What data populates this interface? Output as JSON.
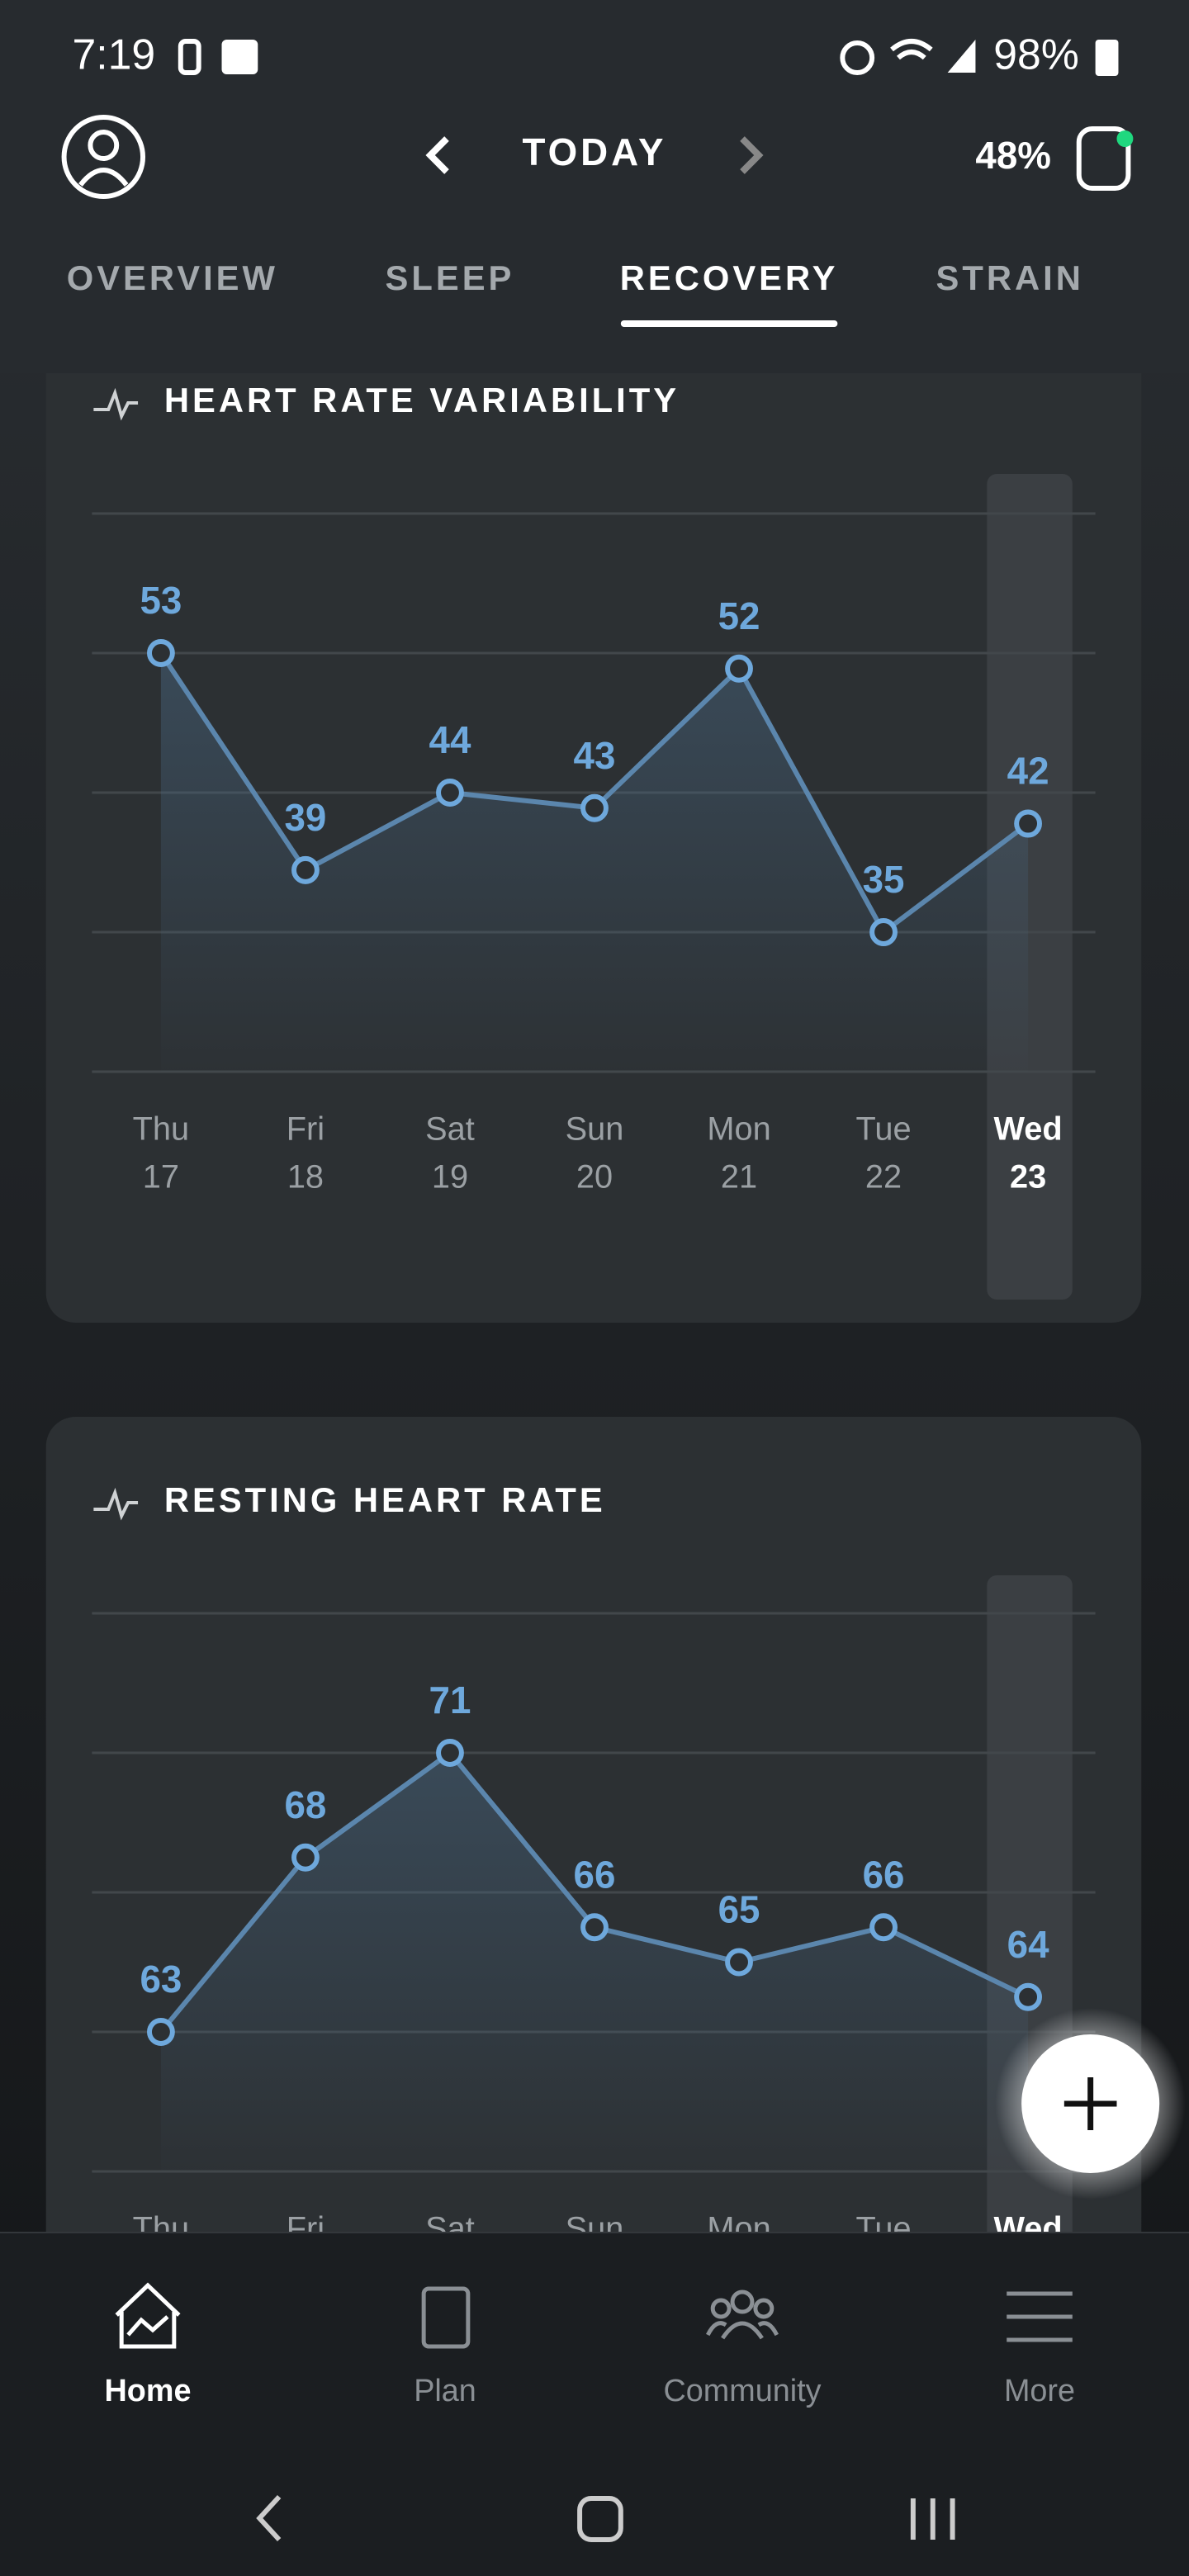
{
  "status_bar": {
    "time": "7:19",
    "battery": "98%"
  },
  "header": {
    "title": "TODAY",
    "strap_battery": "48%"
  },
  "tabs": [
    "OVERVIEW",
    "SLEEP",
    "RECOVERY",
    "STRAIN"
  ],
  "chart_data": [
    {
      "type": "line",
      "title": "HEART RATE VARIABILITY",
      "categories": [
        "Thu",
        "Fri",
        "Sat",
        "Sun",
        "Mon",
        "Tue",
        "Wed"
      ],
      "days": [
        17,
        18,
        19,
        20,
        21,
        22,
        23
      ],
      "values": [
        53,
        39,
        44,
        43,
        52,
        35,
        42
      ],
      "color": "#6ea8dc",
      "ylim": [
        26,
        62
      ],
      "yticks": [
        26,
        35,
        44,
        53,
        62
      ],
      "grid": true
    },
    {
      "type": "line",
      "title": "RESTING HEART RATE",
      "categories": [
        "Thu",
        "Fri",
        "Sat",
        "Sun",
        "Mon",
        "Tue",
        "Wed"
      ],
      "values": [
        63,
        68,
        71,
        66,
        65,
        66,
        64
      ],
      "color": "#6ea8dc",
      "ylim": [
        59,
        75
      ],
      "yticks": [
        59,
        63,
        67,
        71,
        75
      ],
      "grid": true
    }
  ],
  "nav": [
    "Home",
    "Plan",
    "Community",
    "More"
  ]
}
